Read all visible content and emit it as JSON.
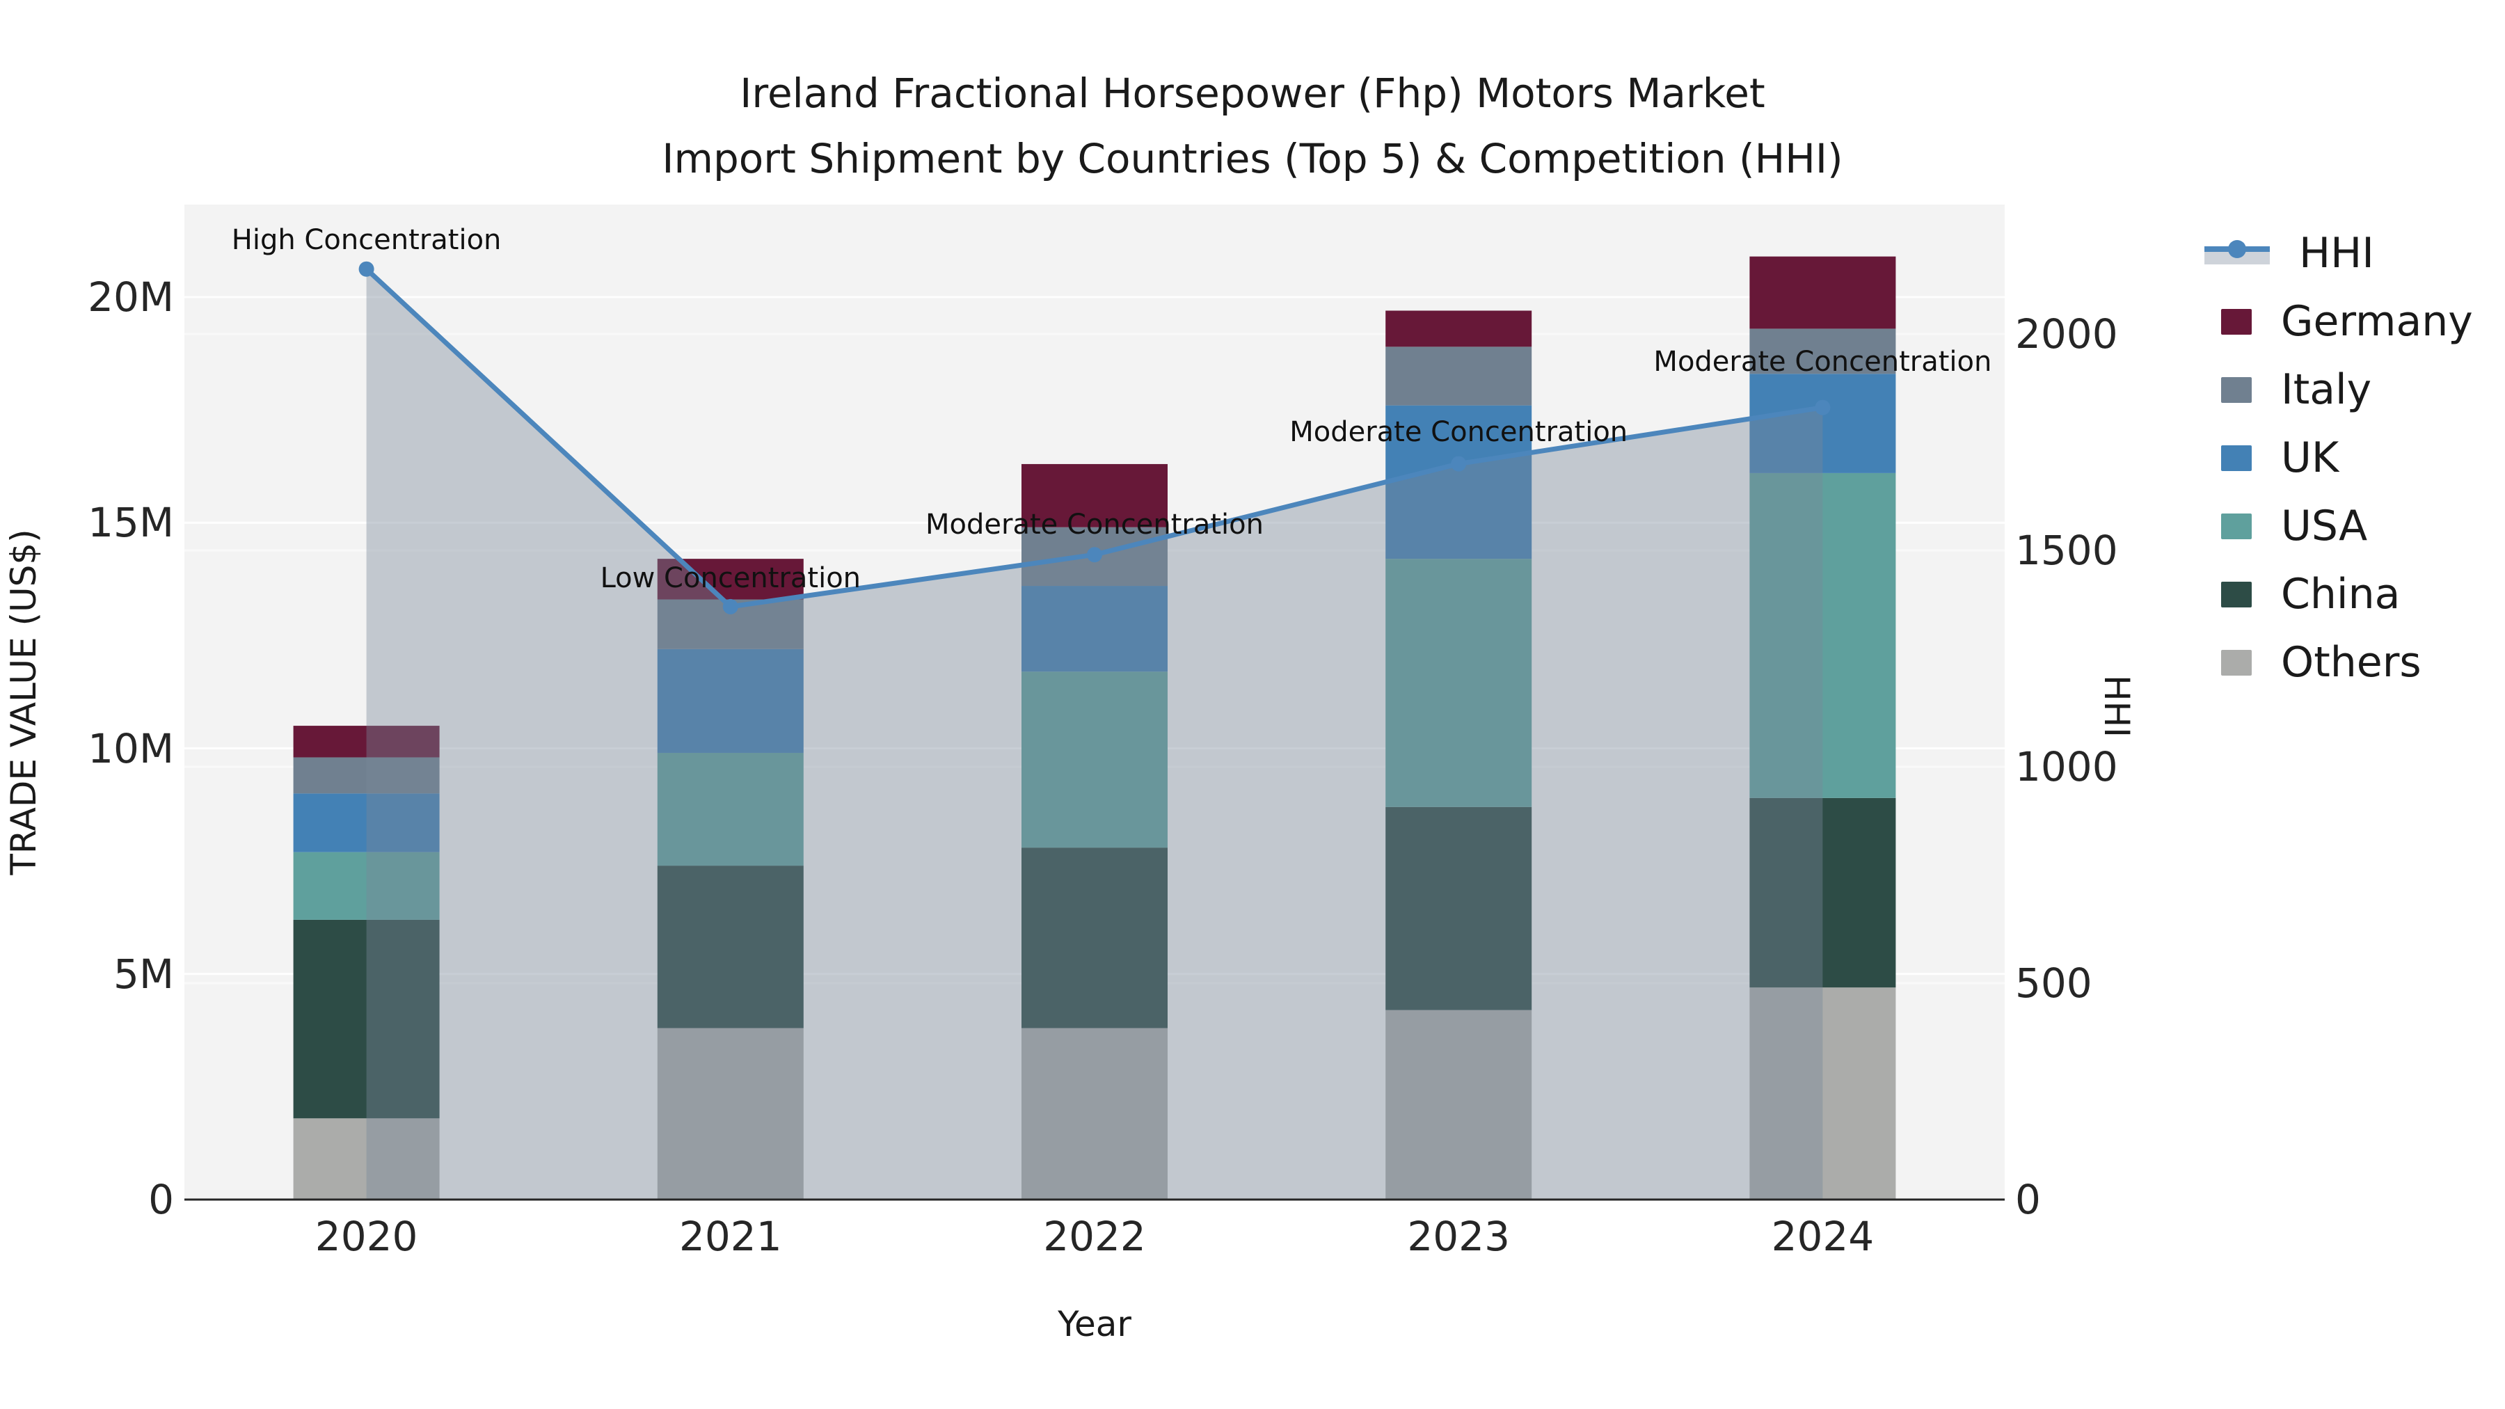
{
  "title": {
    "line1": "Ireland Fractional Horsepower (Fhp) Motors Market",
    "line2": "Import Shipment by Countries (Top 5) & Competition (HHI)"
  },
  "chart_data": {
    "type": "stacked-bar+line",
    "title": "Ireland Fractional Horsepower (Fhp) Motors Market Import Shipment by Countries (Top 5) & Competition (HHI)",
    "xlabel": "Year",
    "ylabel_left": "TRADE VALUE (US$)",
    "ylabel_right": "HHI",
    "categories": [
      "2020",
      "2021",
      "2022",
      "2023",
      "2024"
    ],
    "unit": "million US$",
    "series": [
      {
        "name": "Others",
        "color": "#ABACAA",
        "values": [
          1.8,
          3.8,
          3.8,
          4.2,
          4.7
        ]
      },
      {
        "name": "China",
        "color": "#2D4C46",
        "values": [
          4.4,
          3.6,
          4.0,
          4.5,
          4.2
        ]
      },
      {
        "name": "USA",
        "color": "#5FA09D",
        "values": [
          1.5,
          2.5,
          3.9,
          5.5,
          7.2
        ]
      },
      {
        "name": "UK",
        "color": "#4381B5",
        "values": [
          1.3,
          2.3,
          1.9,
          3.4,
          2.2
        ]
      },
      {
        "name": "Italy",
        "color": "#708090",
        "values": [
          0.8,
          1.1,
          1.3,
          1.3,
          1.0
        ]
      },
      {
        "name": "Germany",
        "color": "#671838",
        "values": [
          0.7,
          0.9,
          1.4,
          0.8,
          1.6
        ]
      }
    ],
    "stack_totals": [
      10.5,
      14.2,
      16.3,
      19.7,
      20.9
    ],
    "hhi": {
      "name": "HHI",
      "values": [
        2150,
        1370,
        1490,
        1700,
        1830
      ],
      "line_color": "#4C86BC",
      "area_fill": "rgba(119,136,153,0.40)"
    },
    "annotations": [
      {
        "year": "2020",
        "text": "High Concentration"
      },
      {
        "year": "2021",
        "text": "Low Concentration"
      },
      {
        "year": "2022",
        "text": "Moderate Concentration"
      },
      {
        "year": "2023",
        "text": "Moderate Concentration"
      },
      {
        "year": "2024",
        "text": "Moderate Concentration"
      }
    ],
    "y_left": {
      "tick_labels": [
        "0",
        "5M",
        "10M",
        "15M",
        "20M"
      ],
      "tick_values": [
        0,
        5,
        10,
        15,
        20
      ],
      "range": [
        0,
        22.05
      ]
    },
    "y_right": {
      "tick_labels": [
        "0",
        "500",
        "1000",
        "1500",
        "2000"
      ],
      "tick_values": [
        0,
        500,
        1000,
        1500,
        2000
      ],
      "range": [
        0,
        2300
      ]
    },
    "grid": true,
    "plot_bg": "#F3F3F3",
    "legend_position": "right-outside"
  },
  "legend": {
    "items": [
      {
        "label": "HHI",
        "type": "line+area",
        "color": "#4C86BC",
        "area_color": "#CED3DA"
      },
      {
        "label": "Germany",
        "type": "patch",
        "color": "#671838"
      },
      {
        "label": "Italy",
        "type": "patch",
        "color": "#708090"
      },
      {
        "label": "UK",
        "type": "patch",
        "color": "#4381B5"
      },
      {
        "label": "USA",
        "type": "patch",
        "color": "#5FA09D"
      },
      {
        "label": "China",
        "type": "patch",
        "color": "#2D4C46"
      },
      {
        "label": "Others",
        "type": "patch",
        "color": "#ABACAA"
      }
    ]
  }
}
